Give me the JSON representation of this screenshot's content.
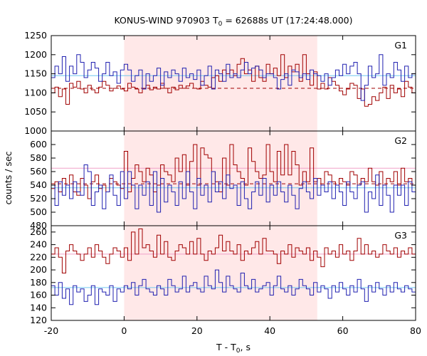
{
  "title_main": "KONUS-WIND 970903 T",
  "title_sub": "0",
  "title_rest": " = 62688s UT (17:24:48.000)",
  "ylabel": "counts / sec",
  "xlabel_main": "T - T",
  "xlabel_sub": "0",
  "xlabel_rest": ", s",
  "colors": {
    "red": "#a00000",
    "blue": "#2020b0",
    "cyan": "#70c8f0",
    "pink": "#f0a0c8",
    "shade": "#ffe8e8"
  },
  "chart_data": {
    "type": "line",
    "xlim": [
      -20,
      80
    ],
    "xticks": [
      "-20",
      "0",
      "20",
      "40",
      "60",
      "80"
    ],
    "xtick_values": [
      -20,
      0,
      20,
      40,
      60,
      80
    ],
    "shaded_interval": [
      0,
      53
    ],
    "step": 1.0,
    "x_start": -20,
    "panels": [
      {
        "name": "G1",
        "ylim": [
          1000,
          1250
        ],
        "yticks": [
          1000,
          1050,
          1100,
          1150,
          1200,
          1250
        ],
        "ytick_labels": [
          "1000",
          "1050",
          "1100",
          "1150",
          "1200",
          "1250"
        ],
        "blue_bg": 1145,
        "red_bg": 1112,
        "series": [
          {
            "color": "red",
            "values": [
              1100,
              1115,
              1090,
              1110,
              1070,
              1125,
              1115,
              1130,
              1110,
              1100,
              1120,
              1108,
              1100,
              1115,
              1130,
              1120,
              1105,
              1112,
              1118,
              1110,
              1105,
              1125,
              1115,
              1110,
              1100,
              1112,
              1120,
              1108,
              1115,
              1110,
              1125,
              1112,
              1100,
              1115,
              1108,
              1120,
              1112,
              1118,
              1125,
              1112,
              1110,
              1130,
              1120,
              1115,
              1140,
              1145,
              1130,
              1160,
              1150,
              1160,
              1145,
              1175,
              1190,
              1150,
              1160,
              1130,
              1170,
              1140,
              1130,
              1175,
              1150,
              1165,
              1145,
              1200,
              1140,
              1170,
              1155,
              1175,
              1130,
              1200,
              1150,
              1120,
              1155,
              1110,
              1125,
              1110,
              1140,
              1130,
              1120,
              1105,
              1095,
              1110,
              1125,
              1120,
              1085,
              1110,
              1065,
              1070,
              1090,
              1080,
              1100,
              1115,
              1085,
              1120,
              1100,
              1110,
              1090,
              1130,
              1115,
              1100
            ]
          },
          {
            "color": "blue",
            "values": [
              1140,
              1170,
              1150,
              1195,
              1130,
              1170,
              1150,
              1200,
              1180,
              1140,
              1160,
              1180,
              1165,
              1130,
              1150,
              1180,
              1145,
              1155,
              1125,
              1160,
              1175,
              1160,
              1130,
              1145,
              1160,
              1110,
              1150,
              1130,
              1145,
              1165,
              1120,
              1155,
              1140,
              1160,
              1150,
              1130,
              1165,
              1140,
              1150,
              1135,
              1160,
              1120,
              1145,
              1170,
              1110,
              1160,
              1150,
              1130,
              1175,
              1140,
              1150,
              1140,
              1160,
              1180,
              1150,
              1165,
              1170,
              1160,
              1140,
              1150,
              1150,
              1140,
              1110,
              1135,
              1150,
              1120,
              1160,
              1155,
              1140,
              1150,
              1135,
              1160,
              1150,
              1145,
              1130,
              1150,
              1120,
              1140,
              1160,
              1145,
              1175,
              1150,
              1170,
              1180,
              1150,
              1080,
              1120,
              1170,
              1140,
              1150,
              1200,
              1120,
              1150,
              1140,
              1180,
              1160,
              1130,
              1170,
              1140,
              1150
            ]
          }
        ]
      },
      {
        "name": "G2",
        "ylim": [
          480,
          620
        ],
        "yticks": [
          480,
          500,
          520,
          540,
          560,
          580,
          600
        ],
        "ytick_labels": [
          "480",
          "500",
          "520",
          "540",
          "560",
          "580",
          "600"
        ],
        "blue_bg": 536,
        "red_bg": 542,
        "pink_line": 565,
        "series": [
          {
            "color": "red",
            "values": [
              535,
              545,
              530,
              550,
              540,
              555,
              530,
              525,
              550,
              540,
              520,
              545,
              555,
              535,
              540,
              530,
              550,
              545,
              540,
              535,
              590,
              530,
              550,
              570,
              560,
              545,
              565,
              555,
              530,
              540,
              570,
              560,
              555,
              545,
              580,
              560,
              585,
              540,
              575,
              600,
              540,
              595,
              585,
              580,
              560,
              545,
              530,
              580,
              540,
              600,
              570,
              560,
              550,
              540,
              595,
              575,
              560,
              550,
              555,
              600,
              560,
              545,
              590,
              555,
              600,
              555,
              590,
              570,
              540,
              560,
              545,
              595,
              545,
              550,
              540,
              560,
              555,
              545,
              540,
              550,
              545,
              540,
              560,
              555,
              540,
              550,
              545,
              565,
              545,
              540,
              560,
              540,
              550,
              545,
              560,
              540,
              565,
              545,
              550,
              540
            ]
          },
          {
            "color": "blue",
            "values": [
              540,
              510,
              545,
              525,
              540,
              520,
              545,
              530,
              525,
              570,
              560,
              510,
              530,
              540,
              505,
              530,
              555,
              525,
              510,
              560,
              520,
              560,
              540,
              505,
              540,
              525,
              545,
              510,
              560,
              500,
              550,
              515,
              540,
              530,
              510,
              545,
              520,
              560,
              530,
              505,
              550,
              525,
              540,
              515,
              560,
              530,
              545,
              520,
              555,
              535,
              540,
              510,
              545,
              520,
              505,
              530,
              545,
              525,
              550,
              515,
              540,
              525,
              545,
              530,
              515,
              540,
              525,
              505,
              535,
              545,
              530,
              520,
              550,
              525,
              540,
              530,
              545,
              520,
              540,
              530,
              510,
              545,
              530,
              520,
              540,
              545,
              500,
              530,
              520,
              555,
              510,
              540,
              525,
              500,
              540,
              525,
              540,
              510,
              545,
              530
            ]
          }
        ]
      },
      {
        "name": "G3",
        "ylim": [
          120,
          270
        ],
        "yticks": [
          120,
          140,
          160,
          180,
          200,
          220,
          240,
          260
        ],
        "ytick_labels": [
          "120",
          "140",
          "160",
          "180",
          "200",
          "220",
          "240",
          "260"
        ],
        "blue_bg": 172,
        "red_bg": 225,
        "series": [
          {
            "color": "red",
            "values": [
              225,
              235,
              220,
              195,
              230,
              240,
              230,
              225,
              215,
              225,
              235,
              220,
              240,
              230,
              220,
              210,
              225,
              235,
              230,
              220,
              235,
              215,
              260,
              225,
              265,
              235,
              240,
              230,
              220,
              255,
              225,
              245,
              220,
              215,
              230,
              240,
              235,
              225,
              245,
              225,
              250,
              225,
              215,
              230,
              225,
              235,
              255,
              230,
              245,
              230,
              225,
              240,
              215,
              230,
              225,
              235,
              245,
              225,
              250,
              230,
              230,
              225,
              210,
              230,
              225,
              240,
              220,
              235,
              230,
              225,
              235,
              215,
              230,
              220,
              205,
              235,
              225,
              230,
              220,
              240,
              225,
              230,
              215,
              230,
              250,
              225,
              240,
              225,
              230,
              220,
              225,
              240,
              230,
              225,
              235,
              220,
              230,
              225,
              235,
              225
            ]
          },
          {
            "color": "blue",
            "values": [
              175,
              160,
              180,
              155,
              170,
              145,
              175,
              165,
              170,
              150,
              160,
              175,
              145,
              170,
              165,
              160,
              175,
              150,
              170,
              165,
              175,
              170,
              180,
              160,
              175,
              185,
              170,
              165,
              160,
              175,
              170,
              160,
              185,
              175,
              165,
              170,
              190,
              165,
              175,
              180,
              170,
              165,
              190,
              175,
              170,
              200,
              180,
              165,
              190,
              175,
              170,
              165,
              195,
              175,
              170,
              185,
              165,
              170,
              175,
              180,
              160,
              175,
              190,
              170,
              165,
              175,
              160,
              170,
              185,
              175,
              170,
              160,
              180,
              165,
              175,
              170,
              155,
              175,
              165,
              180,
              170,
              160,
              175,
              165,
              185,
              170,
              150,
              175,
              165,
              180,
              170,
              160,
              175,
              165,
              180,
              170,
              165,
              175,
              170,
              165
            ]
          }
        ]
      }
    ]
  }
}
